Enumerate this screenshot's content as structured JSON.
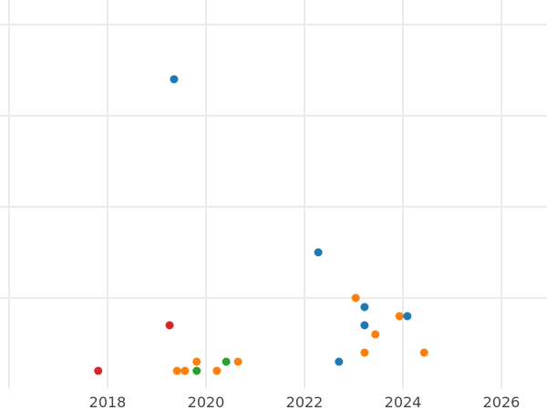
{
  "chart_data": {
    "type": "scatter",
    "title": "",
    "xlabel": "",
    "ylabel": "",
    "xlim": [
      2016,
      2026.93
    ],
    "ylim": [
      0,
      42.7
    ],
    "grid": true,
    "x_ticks": [
      2016,
      2018,
      2020,
      2022,
      2024,
      2026
    ],
    "x_tick_labels": [
      "",
      "2018",
      "2020",
      "2022",
      "2024",
      "2026"
    ],
    "y_ticks": [
      10,
      20,
      30,
      40
    ],
    "series": [
      {
        "color": "#d62728",
        "points": [
          [
            2017.81,
            2
          ],
          [
            2019.26,
            7
          ]
        ]
      },
      {
        "color": "#ff7f0e",
        "points": [
          [
            2019.41,
            2
          ],
          [
            2019.57,
            2
          ],
          [
            2019.81,
            3
          ],
          [
            2020.22,
            2
          ],
          [
            2020.65,
            3
          ],
          [
            2023.04,
            10
          ],
          [
            2023.93,
            8
          ],
          [
            2023.44,
            6
          ],
          [
            2023.22,
            4
          ],
          [
            2024.43,
            4
          ]
        ]
      },
      {
        "color": "#2ca02c",
        "points": [
          [
            2019.81,
            2
          ],
          [
            2020.41,
            3
          ]
        ]
      },
      {
        "color": "#1f77b4",
        "points": [
          [
            2019.35,
            34
          ],
          [
            2022.28,
            15
          ],
          [
            2023.22,
            9
          ],
          [
            2023.22,
            7
          ],
          [
            2024.09,
            8
          ],
          [
            2022.7,
            3
          ]
        ]
      }
    ]
  }
}
